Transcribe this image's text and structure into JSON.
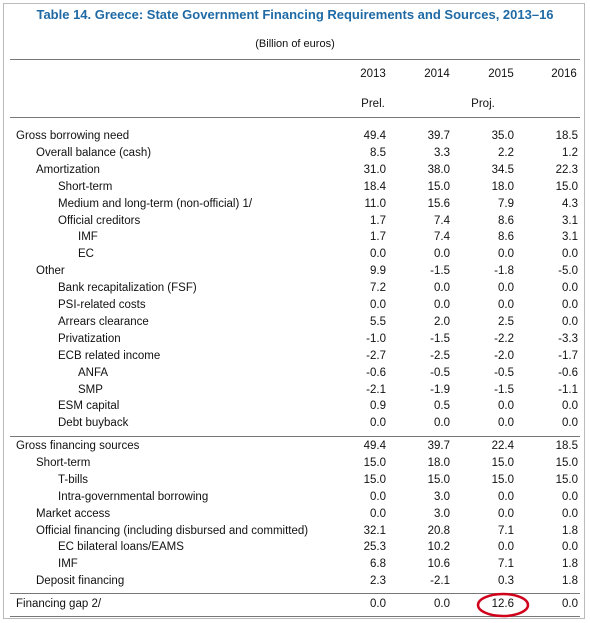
{
  "header": {
    "title": "Table 14. Greece: State Government Financing Requirements and Sources, 2013–16",
    "subtitle": "(Billion of euros)"
  },
  "table": {
    "columns": [
      "2013",
      "2014",
      "2015",
      "2016"
    ],
    "status": [
      "Prel.",
      "Proj."
    ],
    "rows": [
      {
        "label": "Gross borrowing need",
        "values": [
          "49.4",
          "39.7",
          "35.0",
          "18.5"
        ]
      },
      {
        "label": "Overall balance (cash)",
        "values": [
          "8.5",
          "3.3",
          "2.2",
          "1.2"
        ]
      },
      {
        "label": "Amortization",
        "values": [
          "31.0",
          "38.0",
          "34.5",
          "22.3"
        ]
      },
      {
        "label": "Short-term",
        "values": [
          "18.4",
          "15.0",
          "18.0",
          "15.0"
        ]
      },
      {
        "label": "Medium and long-term (non-official) 1/",
        "values": [
          "11.0",
          "15.6",
          "7.9",
          "4.3"
        ]
      },
      {
        "label": "Official creditors",
        "values": [
          "1.7",
          "7.4",
          "8.6",
          "3.1"
        ]
      },
      {
        "label": "IMF",
        "values": [
          "1.7",
          "7.4",
          "8.6",
          "3.1"
        ]
      },
      {
        "label": "EC",
        "values": [
          "0.0",
          "0.0",
          "0.0",
          "0.0"
        ]
      },
      {
        "label": "Other",
        "values": [
          "9.9",
          "-1.5",
          "-1.8",
          "-5.0"
        ]
      },
      {
        "label": "Bank recapitalization (FSF)",
        "values": [
          "7.2",
          "0.0",
          "0.0",
          "0.0"
        ]
      },
      {
        "label": "PSI-related costs",
        "values": [
          "0.0",
          "0.0",
          "0.0",
          "0.0"
        ]
      },
      {
        "label": "Arrears clearance",
        "values": [
          "5.5",
          "2.0",
          "2.5",
          "0.0"
        ]
      },
      {
        "label": "Privatization",
        "values": [
          "-1.0",
          "-1.5",
          "-2.2",
          "-3.3"
        ]
      },
      {
        "label": "ECB related income",
        "values": [
          "-2.7",
          "-2.5",
          "-2.0",
          "-1.7"
        ]
      },
      {
        "label": "ANFA",
        "values": [
          "-0.6",
          "-0.5",
          "-0.5",
          "-0.6"
        ]
      },
      {
        "label": "SMP",
        "values": [
          "-2.1",
          "-1.9",
          "-1.5",
          "-1.1"
        ]
      },
      {
        "label": "ESM capital",
        "values": [
          "0.9",
          "0.5",
          "0.0",
          "0.0"
        ]
      },
      {
        "label": "Debt buyback",
        "values": [
          "0.0",
          "0.0",
          "0.0",
          "0.0"
        ]
      },
      {
        "label": "Gross financing sources",
        "values": [
          "49.4",
          "39.7",
          "22.4",
          "18.5"
        ]
      },
      {
        "label": "Short-term",
        "values": [
          "15.0",
          "18.0",
          "15.0",
          "15.0"
        ]
      },
      {
        "label": "T-bills",
        "values": [
          "15.0",
          "15.0",
          "15.0",
          "15.0"
        ]
      },
      {
        "label": "Intra-governmental borrowing",
        "values": [
          "0.0",
          "3.0",
          "0.0",
          "0.0"
        ]
      },
      {
        "label": "Market access",
        "values": [
          "0.0",
          "3.0",
          "0.0",
          "0.0"
        ]
      },
      {
        "label": "Official financing (including disbursed and committed)",
        "values": [
          "32.1",
          "20.8",
          "7.1",
          "1.8"
        ]
      },
      {
        "label": "EC bilateral loans/EAMS",
        "values": [
          "25.3",
          "10.2",
          "0.0",
          "0.0"
        ]
      },
      {
        "label": "IMF",
        "values": [
          "6.8",
          "10.6",
          "7.1",
          "1.8"
        ]
      },
      {
        "label": "Deposit financing",
        "values": [
          "2.3",
          "-2.1",
          "0.3",
          "1.8"
        ]
      },
      {
        "label": "Financing gap 2/",
        "values": [
          "0.0",
          "0.0",
          "12.6",
          "0.0"
        ]
      }
    ]
  }
}
